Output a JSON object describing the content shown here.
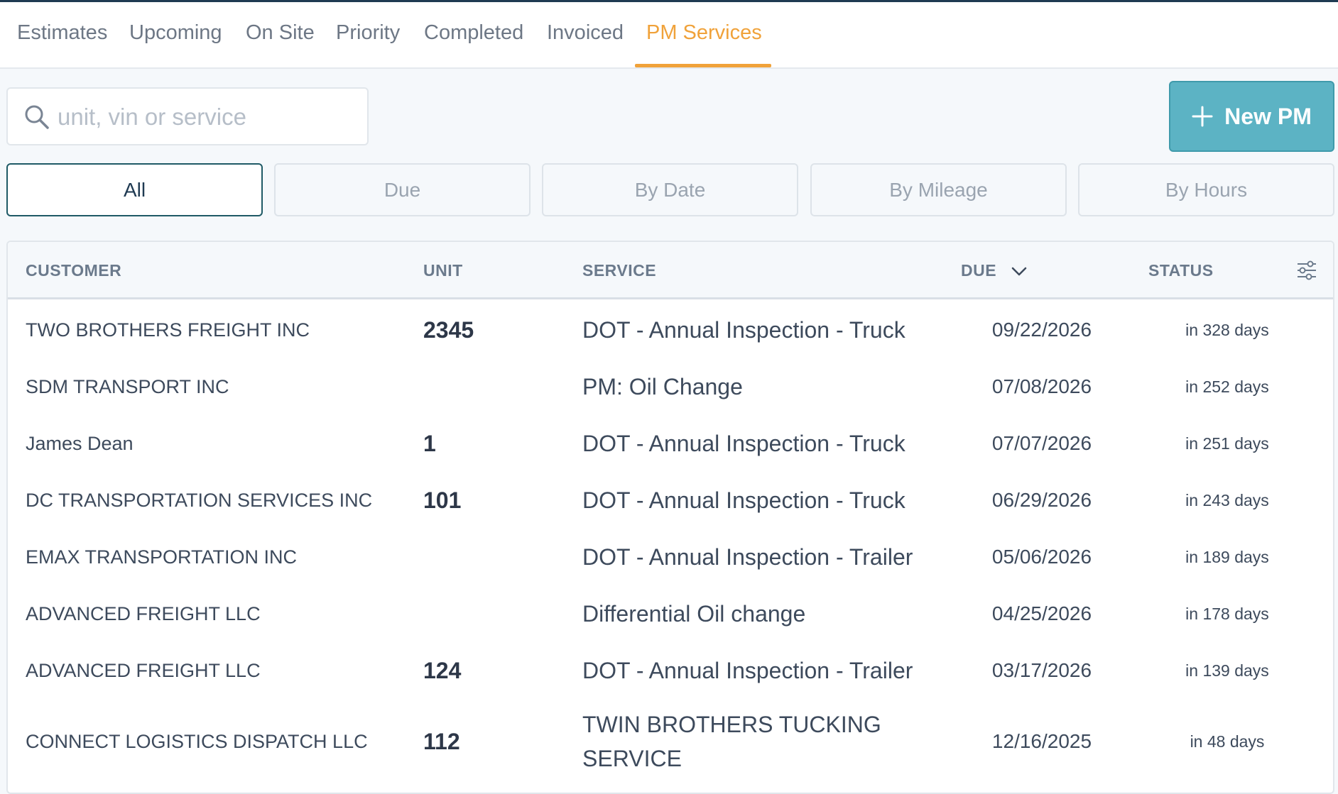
{
  "tabs": [
    {
      "label": "Estimates"
    },
    {
      "label": "Upcoming"
    },
    {
      "label": "On Site"
    },
    {
      "label": "Priority"
    },
    {
      "label": "Completed"
    },
    {
      "label": "Invoiced"
    },
    {
      "label": "PM Services",
      "active": true
    }
  ],
  "search": {
    "placeholder": "unit, vin or service",
    "value": ""
  },
  "new_pm_button": {
    "label": "New PM"
  },
  "filters": [
    {
      "label": "All",
      "active": true
    },
    {
      "label": "Due"
    },
    {
      "label": "By Date"
    },
    {
      "label": "By Mileage"
    },
    {
      "label": "By Hours"
    }
  ],
  "table": {
    "headers": {
      "customer": "CUSTOMER",
      "unit": "UNIT",
      "service": "SERVICE",
      "due": "DUE",
      "status": "STATUS"
    },
    "sort": {
      "column": "DUE",
      "direction": "descending"
    },
    "rows": [
      {
        "customer": "TWO BROTHERS FREIGHT INC",
        "unit": "2345",
        "service": "DOT - Annual Inspection - Truck",
        "due": "09/22/2026",
        "status": "in 328 days"
      },
      {
        "customer": "SDM TRANSPORT INC",
        "unit": "",
        "service": "PM: Oil Change",
        "due": "07/08/2026",
        "status": "in 252 days"
      },
      {
        "customer": "James Dean",
        "unit": "1",
        "service": "DOT - Annual Inspection - Truck",
        "due": "07/07/2026",
        "status": "in 251 days"
      },
      {
        "customer": "DC TRANSPORTATION SERVICES INC",
        "unit": "101",
        "service": "DOT - Annual Inspection - Truck",
        "due": "06/29/2026",
        "status": "in 243 days"
      },
      {
        "customer": "EMAX TRANSPORTATION INC",
        "unit": "",
        "service": "DOT - Annual Inspection - Trailer",
        "due": "05/06/2026",
        "status": "in 189 days"
      },
      {
        "customer": "ADVANCED FREIGHT LLC",
        "unit": "",
        "service": "Differential Oil change",
        "due": "04/25/2026",
        "status": "in 178 days"
      },
      {
        "customer": "ADVANCED FREIGHT LLC",
        "unit": "124",
        "service": "DOT - Annual Inspection - Trailer",
        "due": "03/17/2026",
        "status": "in 139 days"
      },
      {
        "customer": "CONNECT LOGISTICS DISPATCH LLC",
        "unit": "112",
        "service": "TWIN BROTHERS TUCKING SERVICE",
        "due": "12/16/2025",
        "status": "in 48 days"
      }
    ]
  },
  "colors": {
    "accent_tab": "#f0a23a",
    "primary_button": "#5cb3c4",
    "header_bar": "#1f3a52"
  },
  "icons": {
    "search": "search-icon",
    "plus": "plus-icon",
    "sort": "chevron-down-icon",
    "settings": "sliders-icon"
  }
}
